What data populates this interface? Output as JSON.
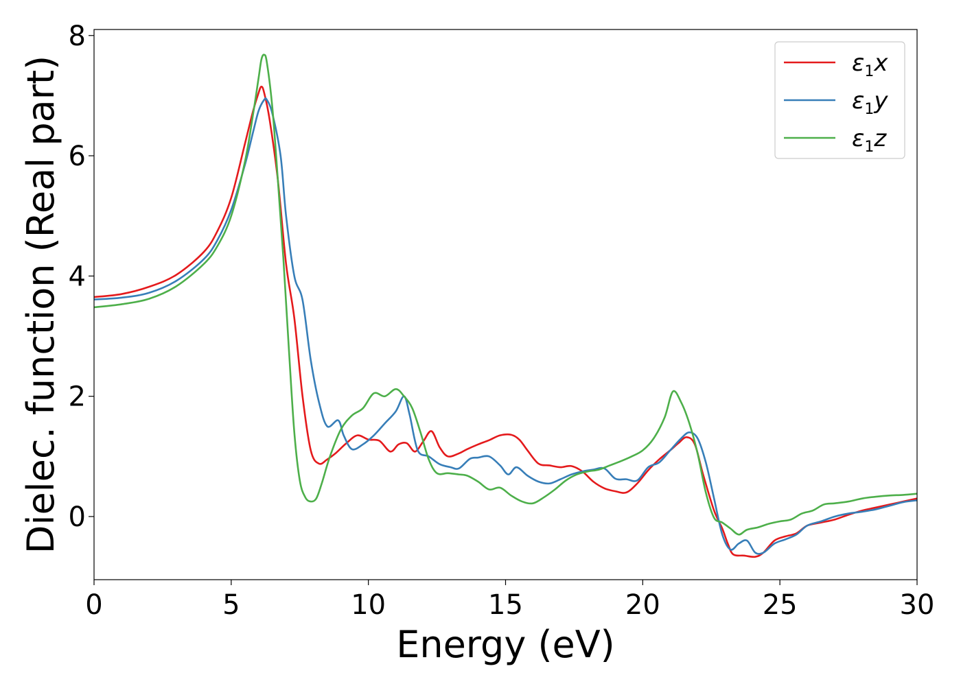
{
  "chart_data": {
    "type": "line",
    "xlabel": "Energy (eV)",
    "ylabel": "Dielec. function (Real part)",
    "xlim": [
      0,
      30
    ],
    "ylim": [
      -1.05,
      8.1
    ],
    "xticks": [
      "0",
      "5",
      "10",
      "15",
      "20",
      "25",
      "30"
    ],
    "yticks": [
      "0",
      "2",
      "4",
      "6",
      "8"
    ],
    "grid": false,
    "legend_position": "top-right",
    "series": [
      {
        "name_main": "ε",
        "name_sub": "1",
        "name_suffix": "x",
        "color": "#e41a1c",
        "x": [
          0,
          1,
          2,
          3,
          4,
          4.5,
          5,
          5.5,
          5.8,
          6.0,
          6.1,
          6.2,
          6.4,
          6.7,
          7.0,
          7.3,
          7.6,
          7.9,
          8.2,
          8.5,
          8.8,
          9.2,
          9.6,
          10.0,
          10.4,
          10.8,
          11.1,
          11.4,
          11.7,
          12.0,
          12.3,
          12.6,
          12.9,
          13.3,
          13.6,
          14.0,
          14.4,
          14.8,
          15.2,
          15.5,
          15.8,
          16.2,
          16.6,
          17.0,
          17.4,
          17.8,
          18.2,
          18.6,
          19.0,
          19.4,
          19.8,
          20.2,
          20.6,
          21.0,
          21.3,
          21.6,
          21.9,
          22.2,
          22.6,
          22.9,
          23.1,
          23.3,
          23.7,
          24.1,
          24.4,
          24.8,
          25.2,
          25.6,
          26.0,
          26.5,
          27.0,
          27.5,
          28.0,
          28.5,
          29.0,
          29.5,
          30.0
        ],
        "y": [
          3.65,
          3.7,
          3.82,
          4.02,
          4.4,
          4.75,
          5.3,
          6.2,
          6.75,
          7.05,
          7.15,
          7.05,
          6.6,
          5.6,
          4.2,
          3.3,
          2.0,
          1.1,
          0.88,
          0.95,
          1.05,
          1.22,
          1.35,
          1.28,
          1.26,
          1.08,
          1.2,
          1.22,
          1.08,
          1.25,
          1.42,
          1.15,
          1.0,
          1.05,
          1.12,
          1.2,
          1.27,
          1.35,
          1.36,
          1.28,
          1.1,
          0.88,
          0.85,
          0.82,
          0.84,
          0.75,
          0.58,
          0.47,
          0.42,
          0.4,
          0.55,
          0.77,
          0.95,
          1.1,
          1.22,
          1.32,
          1.2,
          0.7,
          0.1,
          -0.2,
          -0.45,
          -0.63,
          -0.65,
          -0.67,
          -0.6,
          -0.4,
          -0.33,
          -0.28,
          -0.15,
          -0.1,
          -0.05,
          0.03,
          0.1,
          0.15,
          0.2,
          0.25,
          0.3
        ]
      },
      {
        "name_main": "ε",
        "name_sub": "1",
        "name_suffix": "y",
        "color": "#377eb8",
        "x": [
          0,
          1,
          2,
          3,
          4,
          4.5,
          5,
          5.5,
          5.8,
          6.0,
          6.2,
          6.3,
          6.5,
          6.8,
          7.0,
          7.3,
          7.6,
          7.9,
          8.2,
          8.5,
          8.9,
          9.1,
          9.4,
          9.8,
          10.2,
          10.6,
          11.0,
          11.3,
          11.5,
          11.8,
          12.2,
          12.6,
          13.0,
          13.3,
          13.7,
          14.0,
          14.4,
          14.8,
          15.1,
          15.4,
          15.8,
          16.2,
          16.6,
          17.0,
          17.4,
          17.8,
          18.2,
          18.6,
          19.0,
          19.4,
          19.8,
          20.2,
          20.6,
          21.0,
          21.4,
          21.7,
          22.0,
          22.3,
          22.6,
          22.9,
          23.2,
          23.5,
          23.8,
          24.1,
          24.4,
          24.8,
          25.2,
          25.6,
          26.0,
          26.5,
          27.0,
          27.5,
          28.0,
          28.5,
          29.0,
          29.5,
          30.0
        ],
        "y": [
          3.61,
          3.64,
          3.72,
          3.92,
          4.28,
          4.6,
          5.1,
          5.85,
          6.4,
          6.75,
          6.93,
          6.93,
          6.7,
          6.0,
          5.0,
          4.0,
          3.6,
          2.6,
          1.9,
          1.5,
          1.6,
          1.35,
          1.12,
          1.2,
          1.35,
          1.55,
          1.75,
          2.0,
          1.7,
          1.1,
          1.0,
          0.87,
          0.82,
          0.8,
          0.96,
          0.98,
          1.0,
          0.85,
          0.7,
          0.82,
          0.68,
          0.58,
          0.55,
          0.62,
          0.7,
          0.75,
          0.78,
          0.8,
          0.63,
          0.62,
          0.6,
          0.82,
          0.9,
          1.1,
          1.3,
          1.4,
          1.3,
          0.9,
          0.3,
          -0.3,
          -0.55,
          -0.45,
          -0.4,
          -0.6,
          -0.6,
          -0.45,
          -0.38,
          -0.3,
          -0.15,
          -0.08,
          0.0,
          0.05,
          0.08,
          0.12,
          0.18,
          0.24,
          0.27
        ]
      },
      {
        "name_main": "ε",
        "name_sub": "1",
        "name_suffix": "z",
        "color": "#4daf4a",
        "x": [
          0,
          1,
          2,
          3,
          4,
          4.5,
          5,
          5.5,
          5.8,
          6.0,
          6.1,
          6.2,
          6.3,
          6.5,
          6.7,
          6.9,
          7.1,
          7.3,
          7.5,
          7.7,
          7.9,
          8.1,
          8.3,
          8.6,
          9.0,
          9.4,
          9.8,
          10.2,
          10.6,
          11.0,
          11.3,
          11.6,
          11.9,
          12.2,
          12.5,
          12.9,
          13.3,
          13.6,
          14.0,
          14.4,
          14.8,
          15.2,
          15.6,
          16.0,
          16.4,
          16.8,
          17.2,
          17.6,
          18.0,
          18.4,
          18.8,
          19.2,
          19.6,
          20.0,
          20.4,
          20.8,
          21.1,
          21.4,
          21.7,
          22.0,
          22.3,
          22.6,
          22.9,
          23.2,
          23.5,
          23.8,
          24.2,
          24.6,
          25.0,
          25.4,
          25.8,
          26.2,
          26.6,
          27.0,
          27.5,
          28.0,
          28.5,
          29.0,
          29.5,
          30.0
        ],
        "y": [
          3.48,
          3.53,
          3.62,
          3.83,
          4.2,
          4.5,
          5.0,
          5.9,
          6.7,
          7.3,
          7.6,
          7.68,
          7.55,
          6.8,
          5.6,
          4.3,
          2.8,
          1.4,
          0.6,
          0.32,
          0.25,
          0.3,
          0.55,
          1.0,
          1.45,
          1.68,
          1.8,
          2.05,
          2.0,
          2.12,
          2.0,
          1.8,
          1.4,
          0.95,
          0.72,
          0.72,
          0.7,
          0.68,
          0.58,
          0.45,
          0.48,
          0.35,
          0.25,
          0.22,
          0.32,
          0.45,
          0.6,
          0.7,
          0.75,
          0.78,
          0.85,
          0.92,
          1.0,
          1.1,
          1.3,
          1.65,
          2.08,
          1.9,
          1.55,
          1.05,
          0.4,
          -0.02,
          -0.1,
          -0.2,
          -0.3,
          -0.22,
          -0.18,
          -0.12,
          -0.08,
          -0.05,
          0.05,
          0.1,
          0.2,
          0.22,
          0.25,
          0.3,
          0.33,
          0.35,
          0.36,
          0.38
        ]
      }
    ]
  }
}
